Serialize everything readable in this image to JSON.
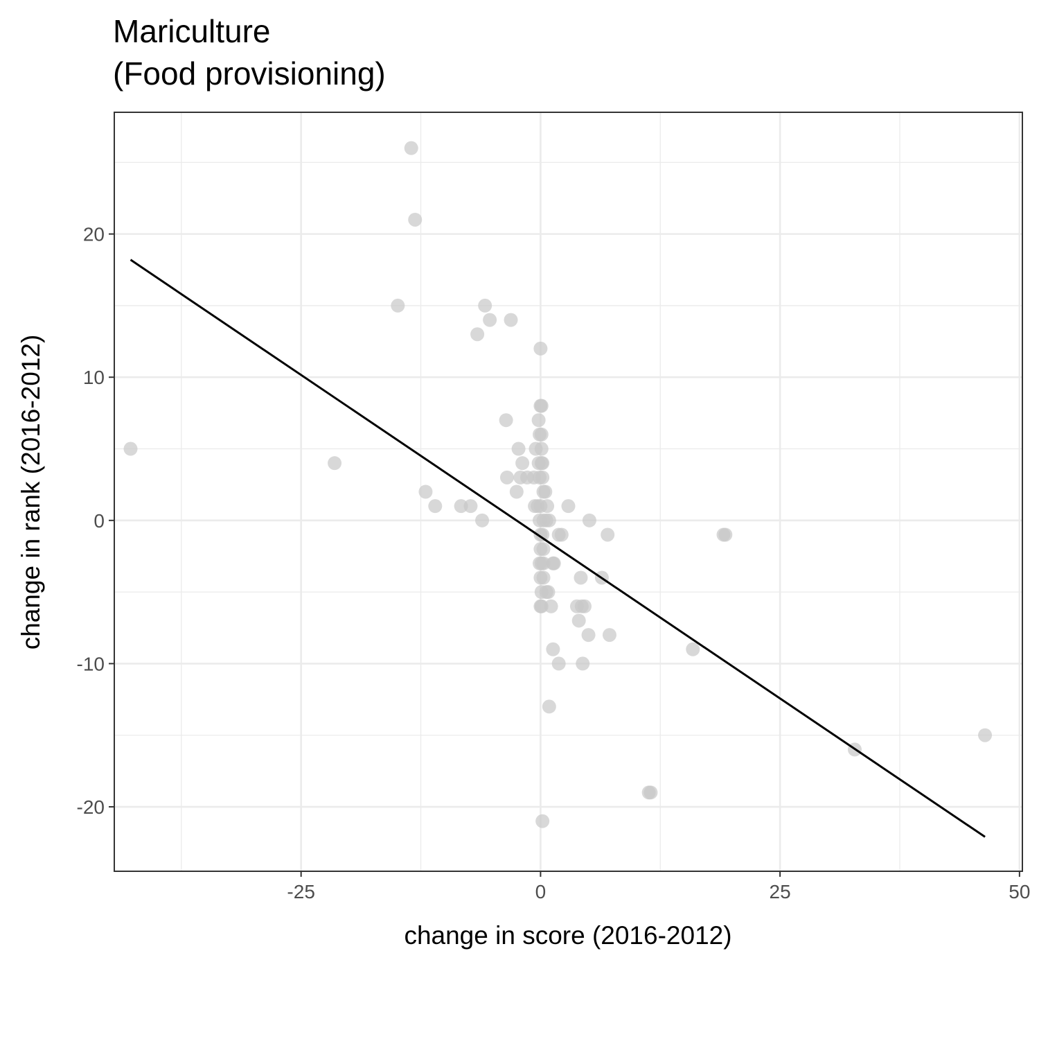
{
  "chart_data": {
    "type": "scatter",
    "title": "Mariculture",
    "subtitle": "(Food provisioning)",
    "xlabel": "change in score (2016-2012)",
    "ylabel": "change in rank (2016-2012)",
    "xlim": [
      -44.5,
      50.3
    ],
    "ylim": [
      -24.5,
      28.5
    ],
    "x_ticks": [
      -25,
      0,
      25,
      50
    ],
    "x_tick_labels": [
      "-25",
      "0",
      "25",
      "50"
    ],
    "y_ticks": [
      -20,
      -10,
      0,
      10,
      20
    ],
    "y_tick_labels": [
      "-20",
      "-10",
      "0",
      "10",
      "20"
    ],
    "grid": true,
    "theme": "bw",
    "point_color": "#c8c8c8",
    "line_color": "#000000",
    "points": [
      {
        "x": -13.5,
        "y": 26
      },
      {
        "x": -13.1,
        "y": 21
      },
      {
        "x": -14.9,
        "y": 15
      },
      {
        "x": -5.8,
        "y": 15
      },
      {
        "x": -5.3,
        "y": 14
      },
      {
        "x": -3.1,
        "y": 14
      },
      {
        "x": -6.6,
        "y": 13
      },
      {
        "x": 0.0,
        "y": 12
      },
      {
        "x": -42.8,
        "y": 5
      },
      {
        "x": -21.5,
        "y": 4
      },
      {
        "x": -3.6,
        "y": 7
      },
      {
        "x": -2.3,
        "y": 5
      },
      {
        "x": -1.9,
        "y": 4
      },
      {
        "x": -2.1,
        "y": 3
      },
      {
        "x": -1.4,
        "y": 3
      },
      {
        "x": -0.7,
        "y": 3
      },
      {
        "x": -3.5,
        "y": 3
      },
      {
        "x": -2.5,
        "y": 2
      },
      {
        "x": -12.0,
        "y": 2
      },
      {
        "x": -11.0,
        "y": 1
      },
      {
        "x": -8.3,
        "y": 1
      },
      {
        "x": -7.3,
        "y": 1
      },
      {
        "x": -6.1,
        "y": 0
      },
      {
        "x": -0.5,
        "y": 5
      },
      {
        "x": -0.2,
        "y": 7
      },
      {
        "x": 0.0,
        "y": 8
      },
      {
        "x": 0.1,
        "y": 8
      },
      {
        "x": -0.1,
        "y": 6
      },
      {
        "x": 0.1,
        "y": 6
      },
      {
        "x": 0.1,
        "y": 5
      },
      {
        "x": -0.2,
        "y": 4
      },
      {
        "x": 0.1,
        "y": 4
      },
      {
        "x": 0.2,
        "y": 4
      },
      {
        "x": -0.1,
        "y": 3
      },
      {
        "x": 0.2,
        "y": 3
      },
      {
        "x": 0.3,
        "y": 2
      },
      {
        "x": 0.5,
        "y": 2
      },
      {
        "x": -0.6,
        "y": 1
      },
      {
        "x": -0.3,
        "y": 1
      },
      {
        "x": 0.0,
        "y": 1
      },
      {
        "x": 0.7,
        "y": 1
      },
      {
        "x": 2.9,
        "y": 1
      },
      {
        "x": -0.1,
        "y": 0
      },
      {
        "x": 0.3,
        "y": 0
      },
      {
        "x": 0.6,
        "y": 0
      },
      {
        "x": 0.9,
        "y": 0
      },
      {
        "x": 5.1,
        "y": 0
      },
      {
        "x": 0.0,
        "y": -1
      },
      {
        "x": 0.2,
        "y": -1
      },
      {
        "x": 1.9,
        "y": -1
      },
      {
        "x": 2.2,
        "y": -1
      },
      {
        "x": 7.0,
        "y": -1
      },
      {
        "x": 19.1,
        "y": -1
      },
      {
        "x": 19.3,
        "y": -1
      },
      {
        "x": 0.0,
        "y": -2
      },
      {
        "x": 0.3,
        "y": -2
      },
      {
        "x": -0.1,
        "y": -3
      },
      {
        "x": 0.1,
        "y": -3
      },
      {
        "x": 0.3,
        "y": -3
      },
      {
        "x": 1.3,
        "y": -3
      },
      {
        "x": 1.4,
        "y": -3
      },
      {
        "x": 0.0,
        "y": -4
      },
      {
        "x": 0.3,
        "y": -4
      },
      {
        "x": 4.2,
        "y": -4
      },
      {
        "x": 6.4,
        "y": -4
      },
      {
        "x": 0.1,
        "y": -5
      },
      {
        "x": 0.6,
        "y": -5
      },
      {
        "x": 0.8,
        "y": -5
      },
      {
        "x": 0.0,
        "y": -6
      },
      {
        "x": 0.1,
        "y": -6
      },
      {
        "x": 1.1,
        "y": -6
      },
      {
        "x": 3.8,
        "y": -6
      },
      {
        "x": 4.3,
        "y": -6
      },
      {
        "x": 4.6,
        "y": -6
      },
      {
        "x": 4.0,
        "y": -7
      },
      {
        "x": 5.0,
        "y": -8
      },
      {
        "x": 7.2,
        "y": -8
      },
      {
        "x": 1.3,
        "y": -9
      },
      {
        "x": 15.9,
        "y": -9
      },
      {
        "x": 1.9,
        "y": -10
      },
      {
        "x": 4.4,
        "y": -10
      },
      {
        "x": 0.9,
        "y": -13
      },
      {
        "x": 32.8,
        "y": -16
      },
      {
        "x": 46.4,
        "y": -15
      },
      {
        "x": 11.3,
        "y": -19
      },
      {
        "x": 11.5,
        "y": -19
      },
      {
        "x": 0.2,
        "y": -21
      }
    ],
    "trend_line": {
      "x": [
        -42.8,
        46.4
      ],
      "y": [
        18.2,
        -22.1
      ]
    }
  }
}
